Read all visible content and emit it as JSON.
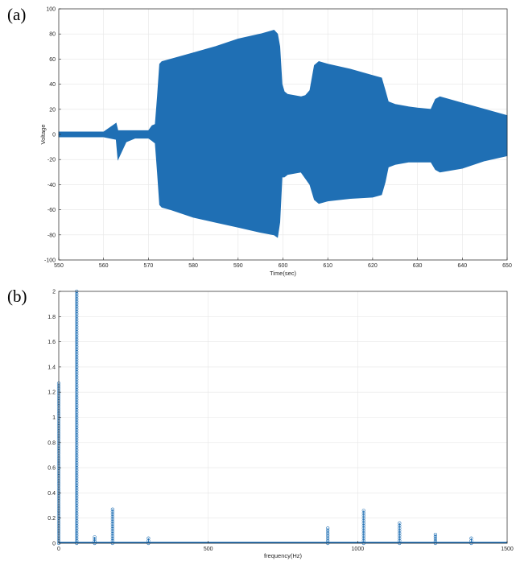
{
  "panels": {
    "a": "(a)",
    "b": "(b)"
  },
  "colors": {
    "series": "#1f6fb4",
    "grid": "#e6e6e6",
    "axis": "#262626"
  },
  "chart_data": [
    {
      "type": "area",
      "subtype": "dense-waveform-envelope",
      "panel": "(a)",
      "xlabel": "Time(sec)",
      "ylabel": "Voltage",
      "xlim": [
        550,
        650
      ],
      "ylim": [
        -100,
        100
      ],
      "xticks": [
        550,
        560,
        570,
        580,
        590,
        600,
        610,
        620,
        630,
        640,
        650
      ],
      "yticks": [
        -100,
        -80,
        -60,
        -40,
        -20,
        0,
        20,
        40,
        60,
        80,
        100
      ],
      "grid": true,
      "series": [
        {
          "x": [
            550,
            555,
            560,
            562.8,
            563.2,
            565,
            567,
            570,
            570.8,
            571.5,
            572,
            572.5,
            573,
            575,
            580,
            585,
            590,
            595,
            598,
            598.8,
            599.3,
            599.8,
            600.3,
            601,
            604,
            605,
            606,
            607,
            608,
            610,
            615,
            620,
            622,
            622.8,
            623.5,
            625,
            628,
            630,
            633,
            634,
            635,
            640,
            645,
            650
          ],
          "upper": [
            2,
            2,
            2,
            9,
            3,
            3,
            3,
            3,
            7,
            8,
            30,
            56,
            58,
            60,
            65,
            70,
            76,
            80,
            83,
            80,
            70,
            40,
            34,
            32,
            30,
            31,
            35,
            55,
            58,
            56,
            52,
            47,
            45,
            35,
            26,
            24,
            22,
            21,
            20,
            28,
            30,
            25,
            20,
            15
          ],
          "lower": [
            -2,
            -2,
            -2,
            -4,
            -20,
            -6,
            -3,
            -3,
            -5,
            -7,
            -30,
            -56,
            -58,
            -60,
            -66,
            -70,
            -74,
            -78,
            -80,
            -82,
            -70,
            -34,
            -34,
            -32,
            -30,
            -35,
            -40,
            -52,
            -55,
            -53,
            -51,
            -50,
            -48,
            -38,
            -26,
            -24,
            -22,
            -22,
            -22,
            -28,
            -30,
            -27,
            -21,
            -17
          ]
        }
      ]
    },
    {
      "type": "line",
      "subtype": "stem-spectrum",
      "panel": "(b)",
      "xlabel": "frequency(Hz)",
      "xlim": [
        0,
        1500
      ],
      "ylim": [
        0,
        2
      ],
      "xticks": [
        0,
        500,
        1000,
        1500
      ],
      "yticks": [
        0,
        0.2,
        0.4,
        0.6,
        0.8,
        1,
        1.2,
        1.4,
        1.6,
        1.8,
        2
      ],
      "grid": true,
      "markers": "circle",
      "peaks": [
        {
          "x": 0,
          "y": 1.27
        },
        {
          "x": 60,
          "y": 2.0
        },
        {
          "x": 180,
          "y": 0.27
        },
        {
          "x": 120,
          "y": 0.05
        },
        {
          "x": 300,
          "y": 0.04
        },
        {
          "x": 900,
          "y": 0.12
        },
        {
          "x": 1020,
          "y": 0.26
        },
        {
          "x": 1140,
          "y": 0.16
        },
        {
          "x": 1260,
          "y": 0.07
        },
        {
          "x": 1380,
          "y": 0.04
        }
      ]
    }
  ]
}
